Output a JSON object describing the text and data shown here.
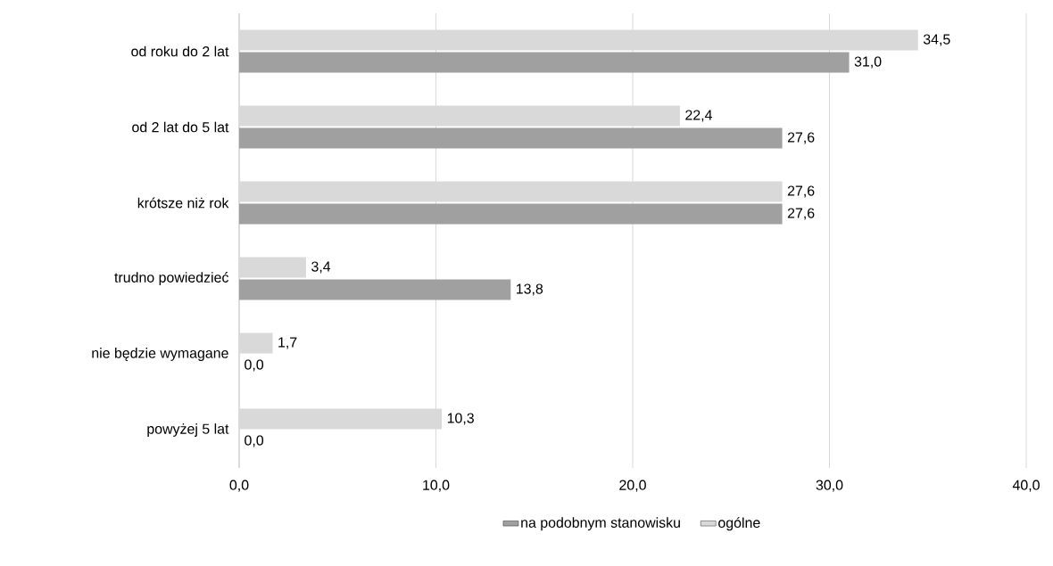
{
  "chart_data": {
    "type": "bar",
    "orientation": "horizontal",
    "categories": [
      "od roku do 2 lat",
      "od 2 lat do 5 lat",
      "krótsze niż rok",
      "trudno powiedzieć",
      "nie będzie wymagane",
      "powyżej 5 lat"
    ],
    "series": [
      {
        "name": "na podobnym stanowisku",
        "color": "#a0a0a0",
        "values": [
          31.0,
          27.6,
          27.6,
          13.8,
          0.0,
          0.0
        ],
        "value_labels": [
          "31,0",
          "27,6",
          "27,6",
          "13,8",
          "0,0",
          "0,0"
        ]
      },
      {
        "name": "ogólne",
        "color": "#d9d9d9",
        "values": [
          34.5,
          22.4,
          27.6,
          3.4,
          1.7,
          10.3
        ],
        "value_labels": [
          "34,5",
          "22,4",
          "27,6",
          "3,4",
          "1,7",
          "10,3"
        ]
      }
    ],
    "xlim": [
      0,
      40
    ],
    "xticks": [
      {
        "value": 0,
        "label": "0,0"
      },
      {
        "value": 10,
        "label": "10,0"
      },
      {
        "value": 20,
        "label": "20,0"
      },
      {
        "value": 30,
        "label": "30,0"
      },
      {
        "value": 40,
        "label": "40,0"
      }
    ],
    "grid": "x",
    "legend": "bottom"
  }
}
